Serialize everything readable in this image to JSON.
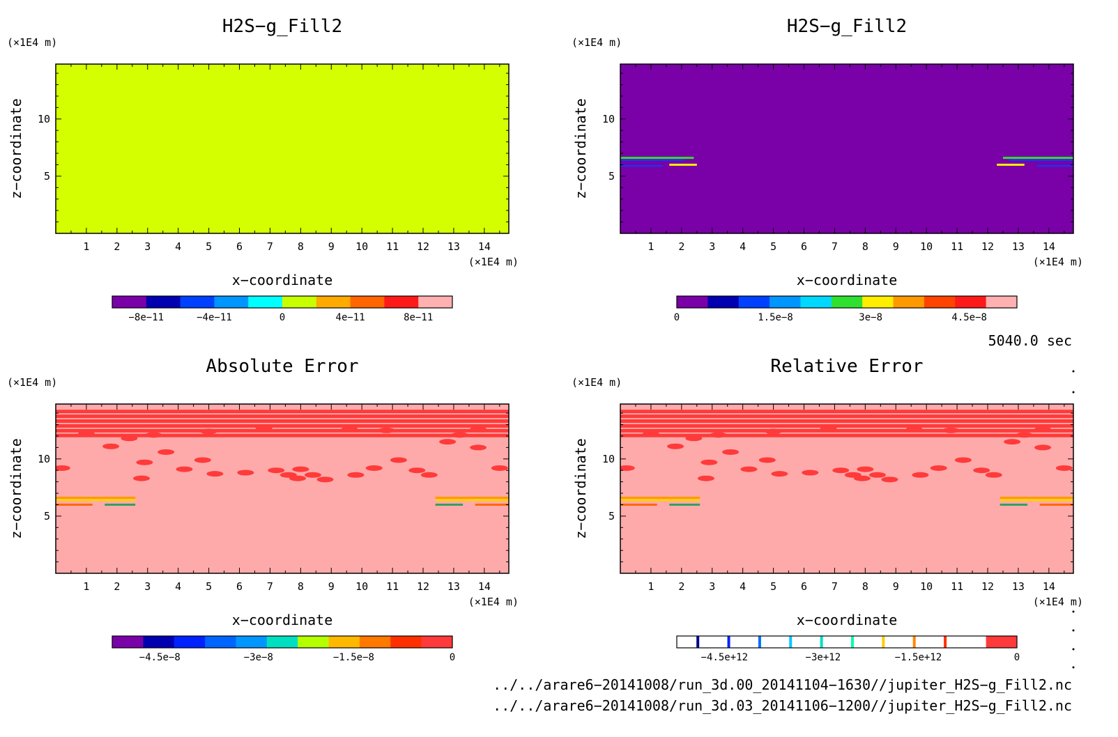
{
  "panels": [
    {
      "title": "H2S−g_Fill2",
      "y_unit": "(×1E4 m)",
      "x_unit": "(×1E4 m)",
      "xlabel": "x−coordinate",
      "ylabel": "z−coordinate",
      "fill": "#d4ff00",
      "colorbar": {
        "colors": [
          "#7a00a8",
          "#0000b0",
          "#0040ff",
          "#0096ff",
          "#00ffff",
          "#c8ff00",
          "#ffaa00",
          "#ff6600",
          "#ff1a1a",
          "#ffb0b0"
        ],
        "labels": [
          "−8e−11",
          "−4e−11",
          "0",
          "4e−11",
          "8e−11"
        ],
        "label_fracs": [
          0.1,
          0.3,
          0.5,
          0.7,
          0.9
        ]
      }
    },
    {
      "title": "H2S−g_Fill2",
      "y_unit": "(×1E4 m)",
      "x_unit": "(×1E4 m)",
      "xlabel": "x−coordinate",
      "ylabel": "z−coordinate",
      "fill": "#7a00a8",
      "colorbar": {
        "colors": [
          "#7a00a8",
          "#0000b0",
          "#0040ff",
          "#0096ff",
          "#00d8ff",
          "#30e030",
          "#ffee00",
          "#ff9900",
          "#ff4400",
          "#ff1a1a",
          "#ffb0b0"
        ],
        "labels": [
          "0",
          "1.5e−8",
          "3e−8",
          "4.5e−8"
        ],
        "label_fracs": [
          0.0,
          0.29,
          0.57,
          0.86
        ]
      }
    },
    {
      "title": "Absolute Error",
      "y_unit": "(×1E4 m)",
      "x_unit": "(×1E4 m)",
      "xlabel": "x−coordinate",
      "ylabel": "z−coordinate",
      "fill": "#ffaaaa",
      "colorbar": {
        "colors": [
          "#7a00a8",
          "#0000b0",
          "#0022ff",
          "#0064ff",
          "#0096ff",
          "#00e0c0",
          "#b4ff00",
          "#ffb800",
          "#ff7800",
          "#ff3000",
          "#ff3a3a"
        ],
        "labels": [
          "−4.5e−8",
          "−3e−8",
          "−1.5e−8",
          "0"
        ],
        "label_fracs": [
          0.14,
          0.43,
          0.71,
          1.0
        ]
      }
    },
    {
      "title": "Relative Error",
      "y_unit": "(×1E4 m)",
      "x_unit": "(×1E4 m)",
      "xlabel": "x−coordinate",
      "ylabel": "z−coordinate",
      "fill": "#ffaaaa",
      "colorbar": {
        "colors": [
          "#ffffff",
          "#ffffff",
          "#ffffff",
          "#ffffff",
          "#ffffff",
          "#ffffff",
          "#ffffff",
          "#ffffff",
          "#ffffff",
          "#ffffff",
          "#ff3a3a"
        ],
        "lines": [
          "#000090",
          "#0020ff",
          "#0070ff",
          "#00c8ff",
          "#00e0c0",
          "#00ffaa",
          "#ffcc00",
          "#ff8800",
          "#ff3000"
        ],
        "labels": [
          "−4.5e+12",
          "−3e+12",
          "−1.5e+12",
          "0"
        ],
        "label_fracs": [
          0.14,
          0.43,
          0.71,
          1.0
        ]
      }
    }
  ],
  "time_label": "5040.0 sec",
  "files": [
    "../../arare6−20141008/run_3d.00_20141104−1630//jupiter_H2S−g_Fill2.nc",
    "../../arare6−20141008/run_3d.03_20141106−1200//jupiter_H2S−g_Fill2.nc"
  ],
  "chart_data": [
    {
      "type": "heatmap",
      "title": "H2S−g_Fill2",
      "xlabel": "x−coordinate",
      "ylabel": "z−coordinate",
      "x_unit": "(×1E4 m)",
      "y_unit": "(×1E4 m)",
      "xlim": [
        0,
        14.8
      ],
      "ylim": [
        0,
        14.8
      ],
      "x_ticks": [
        1,
        2,
        3,
        4,
        5,
        6,
        7,
        8,
        9,
        10,
        11,
        12,
        13,
        14
      ],
      "y_ticks": [
        5,
        10
      ],
      "colorbar_levels": [
        -1e-10,
        -8e-11,
        -6e-11,
        -4e-11,
        -2e-11,
        0,
        2e-11,
        4e-11,
        6e-11,
        8e-11,
        1e-10
      ],
      "colorbar_tick_labels": [
        "−8e−11",
        "−4e−11",
        "0",
        "4e−11",
        "8e−11"
      ],
      "field": "uniform, approximately 0 everywhere"
    },
    {
      "type": "heatmap",
      "title": "H2S−g_Fill2",
      "xlabel": "x−coordinate",
      "ylabel": "z−coordinate",
      "x_unit": "(×1E4 m)",
      "y_unit": "(×1E4 m)",
      "xlim": [
        0,
        14.8
      ],
      "ylim": [
        0,
        14.8
      ],
      "x_ticks": [
        1,
        2,
        3,
        4,
        5,
        6,
        7,
        8,
        9,
        10,
        11,
        12,
        13,
        14
      ],
      "y_ticks": [
        5,
        10
      ],
      "colorbar_levels": [
        0,
        5e-09,
        1e-08,
        1.5e-08,
        2e-08,
        2.5e-08,
        3e-08,
        3.5e-08,
        4e-08,
        4.5e-08,
        5e-08,
        5.5e-08
      ],
      "colorbar_tick_labels": [
        "0",
        "1.5e−8",
        "3e−8",
        "4.5e−8"
      ],
      "field": "mostly 0; thin layers near z = 5.8–6.6 along both lateral boundaries (x < 2.5 and x > 12.5)"
    },
    {
      "type": "heatmap",
      "title": "Absolute Error",
      "xlabel": "x−coordinate",
      "ylabel": "z−coordinate",
      "x_unit": "(×1E4 m)",
      "y_unit": "(×1E4 m)",
      "xlim": [
        0,
        14.8
      ],
      "ylim": [
        0,
        14.8
      ],
      "x_ticks": [
        1,
        2,
        3,
        4,
        5,
        6,
        7,
        8,
        9,
        10,
        11,
        12,
        13,
        14
      ],
      "y_ticks": [
        5,
        10
      ],
      "colorbar_levels": [
        -5.5e-08,
        -5e-08,
        -4.5e-08,
        -4e-08,
        -3.5e-08,
        -3e-08,
        -2.5e-08,
        -2e-08,
        -1.5e-08,
        -1e-08,
        -5e-09,
        0
      ],
      "colorbar_tick_labels": [
        "−4.5e−8",
        "−3e−8",
        "−1.5e−8",
        "0"
      ],
      "field": "near 0 background; small negative patches above z ≈ 8 and stronger negative layers near z = 5.8–6.6 at both lateral boundaries"
    },
    {
      "type": "heatmap",
      "title": "Relative Error",
      "xlabel": "x−coordinate",
      "ylabel": "z−coordinate",
      "x_unit": "(×1E4 m)",
      "y_unit": "(×1E4 m)",
      "xlim": [
        0,
        14.8
      ],
      "ylim": [
        0,
        14.8
      ],
      "x_ticks": [
        1,
        2,
        3,
        4,
        5,
        6,
        7,
        8,
        9,
        10,
        11,
        12,
        13,
        14
      ],
      "y_ticks": [
        5,
        10
      ],
      "colorbar_levels": [
        -5500000000000.0,
        -5000000000000.0,
        -4500000000000.0,
        -4000000000000.0,
        -3500000000000.0,
        -3000000000000.0,
        -2500000000000.0,
        -2000000000000.0,
        -1500000000000.0,
        -1000000000000.0,
        -500000000000.0,
        0
      ],
      "colorbar_tick_labels": [
        "−4.5e+12",
        "−3e+12",
        "−1.5e+12",
        "0"
      ],
      "field": "same pattern as absolute error"
    }
  ]
}
